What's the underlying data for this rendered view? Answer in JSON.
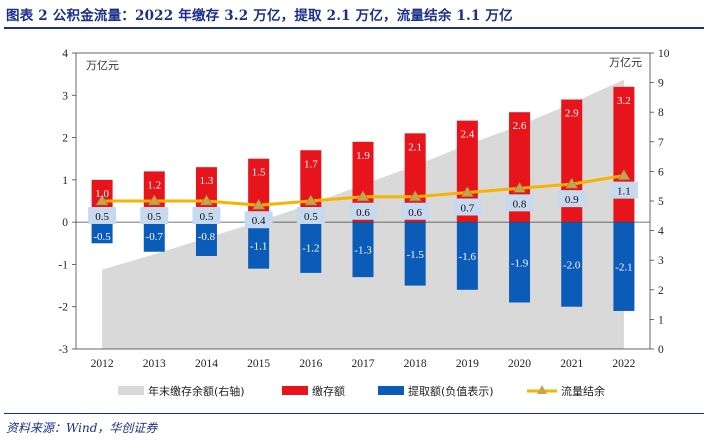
{
  "figure": {
    "title": "图表 2   公积金流量：2022 年缴存 3.2 万亿，提取 2.1 万亿，流量结余 1.1 万亿",
    "source": "资料来源：Wind，华创证券"
  },
  "colors": {
    "title": "#1a2e8c",
    "area": "#d9d9d9",
    "deposit": "#e8141c",
    "withdrawal": "#0b5bb8",
    "net": "#f5b400",
    "label_box": "#c7d9ee"
  },
  "chart_data": {
    "type": "bar",
    "categories": [
      "2012",
      "2013",
      "2014",
      "2015",
      "2016",
      "2017",
      "2018",
      "2019",
      "2020",
      "2021",
      "2022"
    ],
    "series": [
      {
        "name": "年末缴存余额(右轴)",
        "type": "area",
        "axis": "right",
        "values": [
          2.68,
          3.2,
          3.75,
          4.3,
          4.9,
          5.55,
          6.2,
          6.9,
          7.55,
          8.3,
          9.1
        ]
      },
      {
        "name": "缴存额",
        "type": "bar",
        "axis": "left",
        "values": [
          1.0,
          1.2,
          1.3,
          1.5,
          1.7,
          1.9,
          2.1,
          2.4,
          2.6,
          2.9,
          3.2
        ]
      },
      {
        "name": "提取额(负值表示)",
        "type": "bar",
        "axis": "left",
        "values": [
          -0.5,
          -0.7,
          -0.8,
          -1.1,
          -1.2,
          -1.3,
          -1.5,
          -1.6,
          -1.9,
          -2.0,
          -2.1
        ]
      },
      {
        "name": "流量结余",
        "type": "line",
        "axis": "left",
        "values": [
          0.5,
          0.5,
          0.5,
          0.4,
          0.5,
          0.6,
          0.6,
          0.7,
          0.8,
          0.9,
          1.1
        ]
      }
    ],
    "left_axis": {
      "unit": "万亿元",
      "ylim": [
        -3,
        4
      ],
      "ticks": [
        "-3",
        "-2",
        "-1",
        "0",
        "1",
        "2",
        "3",
        "4"
      ]
    },
    "right_axis": {
      "unit": "万亿元",
      "ylim": [
        0,
        10
      ],
      "ticks": [
        "0",
        "1",
        "2",
        "3",
        "4",
        "5",
        "6",
        "7",
        "8",
        "9",
        "10"
      ]
    },
    "legend": [
      "年末缴存余额(右轴)",
      "缴存额",
      "提取额(负值表示)",
      "流量结余"
    ],
    "legend_position": "bottom",
    "grid": false
  }
}
